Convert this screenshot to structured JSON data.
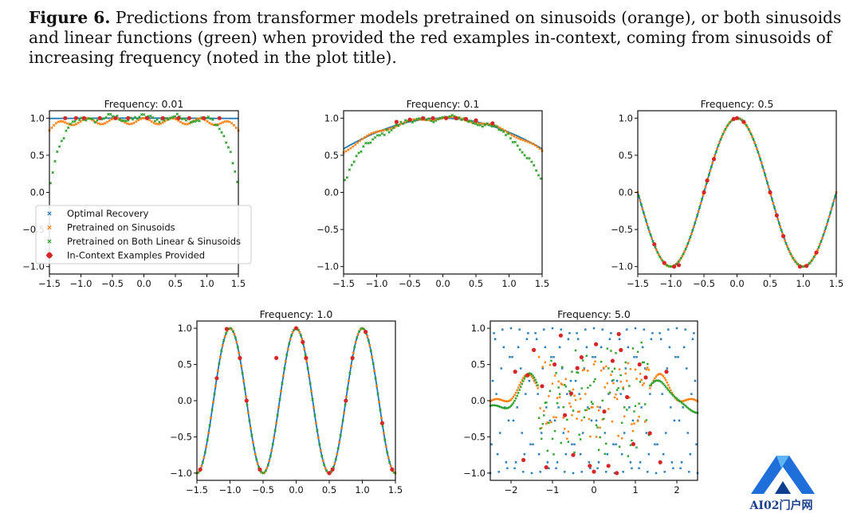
{
  "caption": {
    "label": "Figure 6.",
    "text": "Predictions from transformer models pretrained on sinusoids (orange), or both sinusoids and linear functions (green) when provided the red examples in-context, coming from sinusoids of increasing frequency (noted in the plot title)."
  },
  "colors": {
    "optimal": "#1f77b4",
    "sinusoids": "#ff7f0e",
    "both": "#2ca02c",
    "examples": "#d62728"
  },
  "legend": {
    "entries": [
      "Optimal Recovery",
      "Pretrained on Sinusoids",
      "Pretrained on Both Linear & Sinusoids",
      "In-Context Examples Provided"
    ]
  },
  "chart_data": [
    {
      "type": "scatter",
      "title": "Frequency: 0.01",
      "frequency": 0.01,
      "xlim": [
        -1.5,
        1.5
      ],
      "ylim": [
        -1.1,
        1.1
      ],
      "xticks": [
        -1.5,
        -1.0,
        -0.5,
        0.0,
        0.5,
        1.0,
        1.5
      ],
      "xtick_labels": [
        "−1.5",
        "−1.0",
        "−0.5",
        "0.0",
        "0.5",
        "1.0",
        "1.5"
      ],
      "yticks": [
        -1.0,
        -0.5,
        0.0,
        0.5,
        1.0
      ],
      "ytick_labels": [
        "−1.0",
        "−0.5",
        "0.0",
        "0.5",
        "1.0"
      ],
      "series": [
        {
          "name": "Optimal Recovery",
          "x": [
            -1.5,
            -1.2,
            -0.9,
            -0.6,
            -0.3,
            0,
            0.3,
            0.6,
            0.9,
            1.2,
            1.5
          ],
          "y": [
            1.0,
            1.0,
            1.0,
            1.0,
            1.0,
            1.0,
            1.0,
            1.0,
            1.0,
            1.0,
            1.0
          ]
        },
        {
          "name": "Pretrained on Sinusoids",
          "x": [
            -1.5,
            -1.35,
            -1.2,
            -1.05,
            -0.9,
            -0.75,
            -0.6,
            -0.45,
            -0.3,
            -0.15,
            0,
            0.15,
            0.3,
            0.45,
            0.6,
            0.75,
            0.9,
            1.05,
            1.2,
            1.35,
            1.5
          ],
          "y": [
            0.85,
            0.95,
            0.92,
            0.98,
            0.94,
            0.99,
            0.96,
            1.02,
            0.97,
            1.03,
            0.98,
            1.02,
            0.96,
            1.02,
            0.97,
            1.0,
            0.94,
            0.98,
            0.92,
            0.95,
            0.85
          ]
        },
        {
          "name": "Pretrained on Both Linear & Sinusoids",
          "x": [
            -1.5,
            -1.45,
            -1.4,
            -1.35,
            -1.3,
            -1.25,
            -1.2,
            -1.1,
            -1.0,
            -0.8,
            -0.5,
            0,
            0.5,
            0.8,
            1.0,
            1.1,
            1.2,
            1.25,
            1.3,
            1.35,
            1.4,
            1.45,
            1.5
          ],
          "y": [
            0.02,
            0.3,
            0.55,
            0.7,
            0.78,
            0.85,
            0.9,
            0.96,
            1.0,
            1.0,
            1.02,
            1.03,
            1.02,
            1.0,
            0.98,
            0.95,
            0.88,
            0.82,
            0.74,
            0.62,
            0.45,
            0.25,
            0.02
          ]
        },
        {
          "name": "In-Context Examples Provided",
          "x": [
            -1.25,
            -1.08,
            -0.95,
            -0.7,
            -0.45,
            -0.25,
            0.05,
            0.3,
            0.55,
            0.72,
            0.95,
            1.2
          ],
          "y": [
            1.0,
            1.0,
            1.0,
            1.0,
            1.0,
            1.0,
            1.0,
            1.0,
            1.0,
            1.0,
            1.0,
            1.0
          ]
        }
      ]
    },
    {
      "type": "scatter",
      "title": "Frequency: 0.1",
      "frequency": 0.1,
      "xlim": [
        -1.5,
        1.5
      ],
      "ylim": [
        -1.1,
        1.1
      ],
      "xticks": [
        -1.5,
        -1.0,
        -0.5,
        0.0,
        0.5,
        1.0,
        1.5
      ],
      "xtick_labels": [
        "−1.5",
        "−1.0",
        "−0.5",
        "0.0",
        "0.5",
        "1.0",
        "1.5"
      ],
      "yticks": [
        -1.0,
        -0.5,
        0.0,
        0.5,
        1.0
      ],
      "ytick_labels": [
        "−1.0",
        "−0.5",
        "0.0",
        "0.5",
        "1.0"
      ],
      "series": [
        {
          "name": "Optimal Recovery",
          "x": [
            -1.5,
            -1.2,
            -0.9,
            -0.6,
            -0.3,
            0,
            0.3,
            0.6,
            0.9,
            1.2,
            1.5
          ],
          "y": [
            0.59,
            0.73,
            0.84,
            0.93,
            0.98,
            1.0,
            0.98,
            0.93,
            0.84,
            0.73,
            0.59
          ]
        },
        {
          "name": "Pretrained on Sinusoids",
          "x": [
            -1.5,
            -1.25,
            -1.0,
            -0.75,
            -0.5,
            -0.25,
            0,
            0.25,
            0.5,
            0.75,
            1.0,
            1.25,
            1.5
          ],
          "y": [
            0.57,
            0.7,
            0.85,
            0.95,
            0.97,
            1.02,
            1.0,
            1.02,
            0.97,
            0.95,
            0.85,
            0.7,
            0.52
          ]
        },
        {
          "name": "Pretrained on Both Linear & Sinusoids",
          "x": [
            -1.5,
            -1.4,
            -1.3,
            -1.2,
            -1.1,
            -1.0,
            -0.8,
            -0.5,
            0,
            0.5,
            0.8,
            1.0,
            1.1,
            1.2,
            1.3,
            1.4,
            1.5
          ],
          "y": [
            0.14,
            0.25,
            0.38,
            0.48,
            0.58,
            0.7,
            0.88,
            0.97,
            1.02,
            0.97,
            0.9,
            0.82,
            0.72,
            0.6,
            0.45,
            0.3,
            0.12
          ]
        },
        {
          "name": "In-Context Examples Provided",
          "x": [
            -0.7,
            -0.5,
            -0.3,
            -0.15,
            0.05,
            0.2,
            0.35,
            0.5,
            0.75
          ],
          "y": [
            0.95,
            0.98,
            1.0,
            1.0,
            1.0,
            1.0,
            0.99,
            0.97,
            0.93
          ]
        }
      ]
    },
    {
      "type": "scatter",
      "title": "Frequency: 0.5",
      "frequency": 0.5,
      "xlim": [
        -1.5,
        1.5
      ],
      "ylim": [
        -1.1,
        1.1
      ],
      "xticks": [
        -1.5,
        -1.0,
        -0.5,
        0.0,
        0.5,
        1.0,
        1.5
      ],
      "xtick_labels": [
        "−1.5",
        "−1.0",
        "−0.5",
        "0.0",
        "0.5",
        "1.0",
        "1.5"
      ],
      "yticks": [
        -1.0,
        -0.5,
        0.0,
        0.5,
        1.0
      ],
      "ytick_labels": [
        "−1.0",
        "−0.5",
        "0.0",
        "0.5",
        "1.0"
      ],
      "series": [
        {
          "name": "Optimal Recovery",
          "x": [
            -1.5,
            -1.0,
            -0.5,
            0,
            0.5,
            1.0,
            1.5
          ],
          "y": [
            0.0,
            -1.0,
            0.0,
            1.0,
            0.0,
            -1.0,
            0.0
          ]
        },
        {
          "name": "Pretrained on Sinusoids",
          "x": [
            -1.5,
            -1.0,
            -0.5,
            0,
            0.5,
            1.0,
            1.5
          ],
          "y": [
            0.0,
            -1.0,
            0.0,
            1.0,
            0.0,
            -1.0,
            0.0
          ]
        },
        {
          "name": "Pretrained on Both Linear & Sinusoids",
          "x": [
            -1.5,
            -1.0,
            -0.5,
            0,
            0.5,
            1.0,
            1.5
          ],
          "y": [
            0.0,
            -1.0,
            0.0,
            1.0,
            0.0,
            -1.0,
            0.0
          ]
        },
        {
          "name": "In-Context Examples Provided",
          "x": [
            -1.25,
            -1.1,
            -0.95,
            -0.88,
            -0.5,
            -0.45,
            -0.35,
            -0.05,
            0.0,
            0.1,
            0.5,
            0.6,
            0.7,
            0.95,
            1.05,
            1.2
          ],
          "y": [
            -0.7,
            -0.95,
            -1.0,
            -0.98,
            0.0,
            0.16,
            0.45,
            0.99,
            1.0,
            0.95,
            0.0,
            -0.31,
            -0.59,
            -1.0,
            -0.99,
            -0.81
          ]
        }
      ]
    },
    {
      "type": "scatter",
      "title": "Frequency: 1.0",
      "frequency": 1.0,
      "xlim": [
        -1.5,
        1.5
      ],
      "ylim": [
        -1.1,
        1.1
      ],
      "xticks": [
        -1.5,
        -1.0,
        -0.5,
        0.0,
        0.5,
        1.0,
        1.5
      ],
      "xtick_labels": [
        "−1.5",
        "−1.0",
        "−0.5",
        "0.0",
        "0.5",
        "1.0",
        "1.5"
      ],
      "yticks": [
        -1.0,
        -0.5,
        0.0,
        0.5,
        1.0
      ],
      "ytick_labels": [
        "−1.0",
        "−0.5",
        "0.0",
        "0.5",
        "1.0"
      ],
      "series": [
        {
          "name": "Optimal Recovery",
          "x": [
            -1.5,
            -1.0,
            -0.5,
            0,
            0.5,
            1.0,
            1.5
          ],
          "y": [
            -1.0,
            1.0,
            -1.0,
            1.0,
            -1.0,
            1.0,
            -1.0
          ]
        },
        {
          "name": "Pretrained on Sinusoids",
          "x": [
            -1.5,
            -1.0,
            -0.5,
            0,
            0.5,
            1.0,
            1.5
          ],
          "y": [
            -1.0,
            1.0,
            -1.0,
            1.0,
            -1.0,
            1.0,
            -1.0
          ]
        },
        {
          "name": "Pretrained on Both Linear & Sinusoids",
          "x": [
            -1.5,
            -1.0,
            -0.5,
            0,
            0.5,
            1.0,
            1.5
          ],
          "y": [
            -1.0,
            1.0,
            -1.0,
            1.0,
            -1.0,
            1.0,
            -1.0
          ]
        },
        {
          "name": "In-Context Examples Provided",
          "x": [
            -1.45,
            -1.2,
            -1.05,
            -0.85,
            -0.75,
            -0.55,
            -0.3,
            0.0,
            0.1,
            0.15,
            0.5,
            0.55,
            0.75,
            0.85,
            1.05,
            1.3,
            1.45
          ],
          "y": [
            -0.95,
            0.31,
            0.99,
            0.59,
            0.0,
            -0.95,
            0.59,
            1.0,
            0.81,
            0.59,
            -1.0,
            -0.95,
            0.0,
            0.59,
            0.95,
            -0.31,
            -0.95
          ]
        }
      ]
    },
    {
      "type": "scatter",
      "title": "Frequency: 5.0",
      "frequency": 5.0,
      "xlim": [
        -2.5,
        2.5
      ],
      "ylim": [
        -1.1,
        1.1
      ],
      "xticks": [
        -2,
        -1,
        0,
        1,
        2
      ],
      "xtick_labels": [
        "−2",
        "−1",
        "0",
        "1",
        "2"
      ],
      "yticks": [
        -1.0,
        -0.5,
        0.0,
        0.5,
        1.0
      ],
      "ytick_labels": [
        "−1.0",
        "−0.5",
        "0.0",
        "0.5",
        "1.0"
      ],
      "series": [
        {
          "name": "Optimal Recovery",
          "x": [
            -2.4,
            -2.0,
            -1.6,
            -1.2,
            -0.8,
            -0.4,
            0,
            0.4,
            0.8,
            1.2,
            1.6,
            2.0,
            2.4
          ],
          "y": [
            1.0,
            -1.0,
            1.0,
            -1.0,
            1.0,
            -1.0,
            1.0,
            -1.0,
            1.0,
            -1.0,
            1.0,
            -1.0,
            1.0
          ]
        },
        {
          "name": "Pretrained on Sinusoids",
          "x": [
            -2.5,
            -2.2,
            -1.9,
            -1.6,
            -1.3,
            -1.0,
            -0.5,
            0,
            0.5,
            1.0,
            1.3,
            1.6,
            1.9,
            2.2,
            2.5
          ],
          "y": [
            -0.05,
            0.05,
            0.2,
            0.4,
            0.2,
            0.1,
            0.0,
            0.05,
            0.0,
            0.1,
            0.2,
            0.4,
            0.2,
            0.05,
            -0.05
          ]
        },
        {
          "name": "Pretrained on Both Linear & Sinusoids",
          "x": [
            -2.5,
            -2.2,
            -1.9,
            -1.6,
            -1.3,
            -1.0,
            -0.5,
            0,
            0.5,
            1.0,
            1.3,
            1.6,
            1.9,
            2.2,
            2.5
          ],
          "y": [
            -0.12,
            -0.05,
            0.15,
            0.38,
            0.15,
            0.0,
            -0.1,
            0.0,
            -0.1,
            0.0,
            0.15,
            0.38,
            0.15,
            -0.05,
            -0.12
          ]
        },
        {
          "name": "In-Context Examples Provided",
          "x": [
            -1.9,
            -1.7,
            -1.6,
            -1.45,
            -1.25,
            -1.15,
            -0.95,
            -0.8,
            -0.7,
            -0.55,
            -0.5,
            -0.4,
            -0.3,
            -0.1,
            0.0,
            0.05,
            0.25,
            0.35,
            0.45,
            0.55,
            0.6,
            0.65,
            0.8,
            0.95,
            1.1,
            1.25,
            1.35,
            1.6,
            1.75
          ],
          "y": [
            0.4,
            -0.82,
            0.35,
            0.7,
            0.2,
            -0.92,
            0.5,
            0.9,
            -0.2,
            0.1,
            -0.75,
            0.45,
            0.6,
            -0.9,
            -0.98,
            0.78,
            -0.15,
            -0.9,
            0.55,
            -1.0,
            0.92,
            0.7,
            0.05,
            -0.6,
            0.5,
            0.32,
            -0.45,
            -0.85,
            0.4
          ]
        }
      ]
    }
  ]
}
